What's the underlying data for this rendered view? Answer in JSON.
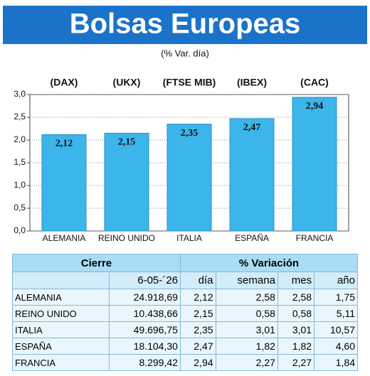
{
  "chart_data": {
    "type": "bar",
    "title": "Bolsas Europeas",
    "subtitle": "(% Var. día)",
    "annotations": [
      "(DAX)",
      "(UKX)",
      "(FTSE MIB)",
      "(IBEX)",
      "(CAC)"
    ],
    "categories": [
      "ALEMANIA",
      "REINO UNIDO",
      "ITALIA",
      "ESPAÑA",
      "FRANCIA"
    ],
    "values": [
      2.12,
      2.15,
      2.35,
      2.47,
      2.94
    ],
    "value_labels": [
      "2,12",
      "2,15",
      "2,35",
      "2,47",
      "2,94"
    ],
    "color": "#3cb5ea",
    "ylim": [
      0,
      3
    ],
    "yticks": [
      {
        "value": 0,
        "label": "0,0"
      },
      {
        "value": 0.5,
        "label": "0,5"
      },
      {
        "value": 1,
        "label": "1,0"
      },
      {
        "value": 1.5,
        "label": "1,5"
      },
      {
        "value": 2,
        "label": "2,0"
      },
      {
        "value": 2.5,
        "label": "2,5"
      },
      {
        "value": 3,
        "label": "3,0"
      }
    ],
    "grid": true
  },
  "table": {
    "header": [
      "Cierre",
      "% Variación"
    ],
    "subheader": [
      "6-05-´26",
      "día",
      "semana",
      "mes",
      "año"
    ],
    "rows": [
      [
        "ALEMANIA",
        "24.918,69",
        "2,12",
        "2,58",
        "2,58",
        "1,75"
      ],
      [
        "REINO UNIDO",
        "10.438,66",
        "2,15",
        "0,58",
        "0,58",
        "5,11"
      ],
      [
        "ITALIA",
        "49.696,75",
        "2,35",
        "3,01",
        "3,01",
        "10,57"
      ],
      [
        "ESPAÑA",
        "18.104,30",
        "2,47",
        "1,82",
        "1,82",
        "4,60"
      ],
      [
        "FRANCIA",
        "8.299,42",
        "2,94",
        "2,27",
        "2,27",
        "1,84"
      ]
    ]
  }
}
